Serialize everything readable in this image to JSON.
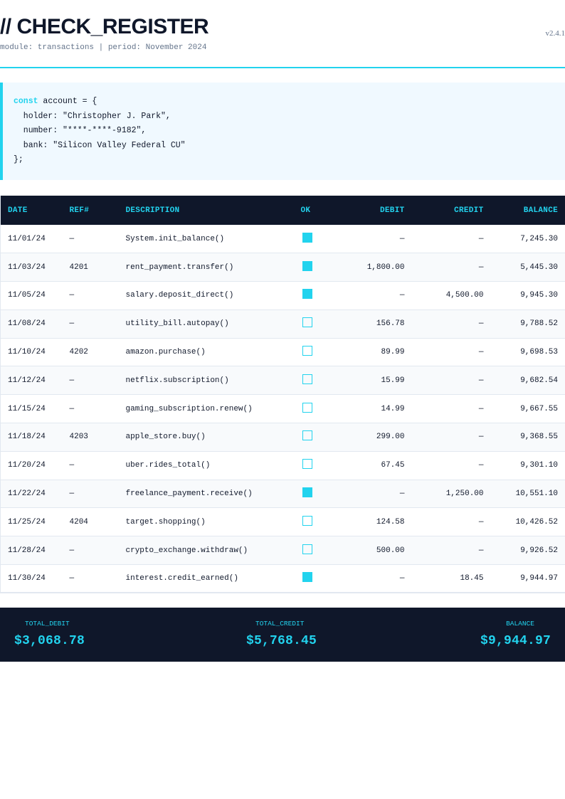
{
  "header": {
    "title": "// CHECK_REGISTER",
    "subtitle": "module: transactions | period: November 2024",
    "version": "v2.4.1"
  },
  "account_block": {
    "keyword": "const",
    "line1_rest": " account = {",
    "line2": "  holder: \"Christopher J. Park\",",
    "line3": "  number: \"****-****-9182\",",
    "line4": "  bank: \"Silicon Valley Federal CU\"",
    "line5": "};",
    "holder": "Christopher J. Park",
    "number": "****-****-9182",
    "bank": "Silicon Valley Federal CU"
  },
  "table": {
    "columns": [
      "DATE",
      "REF#",
      "DESCRIPTION",
      "OK",
      "DEBIT",
      "CREDIT",
      "BALANCE"
    ],
    "rows": [
      {
        "date": "11/01/24",
        "ref": "—",
        "desc": "System.init_balance()",
        "ok": true,
        "debit": "—",
        "credit": "—",
        "balance": "7,245.30"
      },
      {
        "date": "11/03/24",
        "ref": "4201",
        "desc": "rent_payment.transfer()",
        "ok": true,
        "debit": "1,800.00",
        "credit": "—",
        "balance": "5,445.30"
      },
      {
        "date": "11/05/24",
        "ref": "—",
        "desc": "salary.deposit_direct()",
        "ok": true,
        "debit": "—",
        "credit": "4,500.00",
        "balance": "9,945.30"
      },
      {
        "date": "11/08/24",
        "ref": "—",
        "desc": "utility_bill.autopay()",
        "ok": false,
        "debit": "156.78",
        "credit": "—",
        "balance": "9,788.52"
      },
      {
        "date": "11/10/24",
        "ref": "4202",
        "desc": "amazon.purchase()",
        "ok": false,
        "debit": "89.99",
        "credit": "—",
        "balance": "9,698.53"
      },
      {
        "date": "11/12/24",
        "ref": "—",
        "desc": "netflix.subscription()",
        "ok": false,
        "debit": "15.99",
        "credit": "—",
        "balance": "9,682.54"
      },
      {
        "date": "11/15/24",
        "ref": "—",
        "desc": "gaming_subscription.renew()",
        "ok": false,
        "debit": "14.99",
        "credit": "—",
        "balance": "9,667.55"
      },
      {
        "date": "11/18/24",
        "ref": "4203",
        "desc": "apple_store.buy()",
        "ok": false,
        "debit": "299.00",
        "credit": "—",
        "balance": "9,368.55"
      },
      {
        "date": "11/20/24",
        "ref": "—",
        "desc": "uber.rides_total()",
        "ok": false,
        "debit": "67.45",
        "credit": "—",
        "balance": "9,301.10"
      },
      {
        "date": "11/22/24",
        "ref": "—",
        "desc": "freelance_payment.receive()",
        "ok": true,
        "debit": "—",
        "credit": "1,250.00",
        "balance": "10,551.10"
      },
      {
        "date": "11/25/24",
        "ref": "4204",
        "desc": "target.shopping()",
        "ok": false,
        "debit": "124.58",
        "credit": "—",
        "balance": "10,426.52"
      },
      {
        "date": "11/28/24",
        "ref": "—",
        "desc": "crypto_exchange.withdraw()",
        "ok": false,
        "debit": "500.00",
        "credit": "—",
        "balance": "9,926.52"
      },
      {
        "date": "11/30/24",
        "ref": "—",
        "desc": "interest.credit_earned()",
        "ok": true,
        "debit": "—",
        "credit": "18.45",
        "balance": "9,944.97"
      }
    ]
  },
  "summary": {
    "total_debit_label": "TOTAL_DEBIT",
    "total_debit_value": "$3,068.78",
    "total_credit_label": "TOTAL_CREDIT",
    "total_credit_value": "$5,768.45",
    "balance_label": "BALANCE",
    "balance_value": "$9,944.97"
  },
  "colors": {
    "accent": "#22d3ee",
    "dark": "#0f172a",
    "muted": "#64748b",
    "code_bg": "#f0f9ff",
    "row_alt": "#f8fafc",
    "border": "#e2e8f0"
  },
  "icons": {
    "checked": "checkbox-checked-icon",
    "unchecked": "checkbox-unchecked-icon"
  }
}
